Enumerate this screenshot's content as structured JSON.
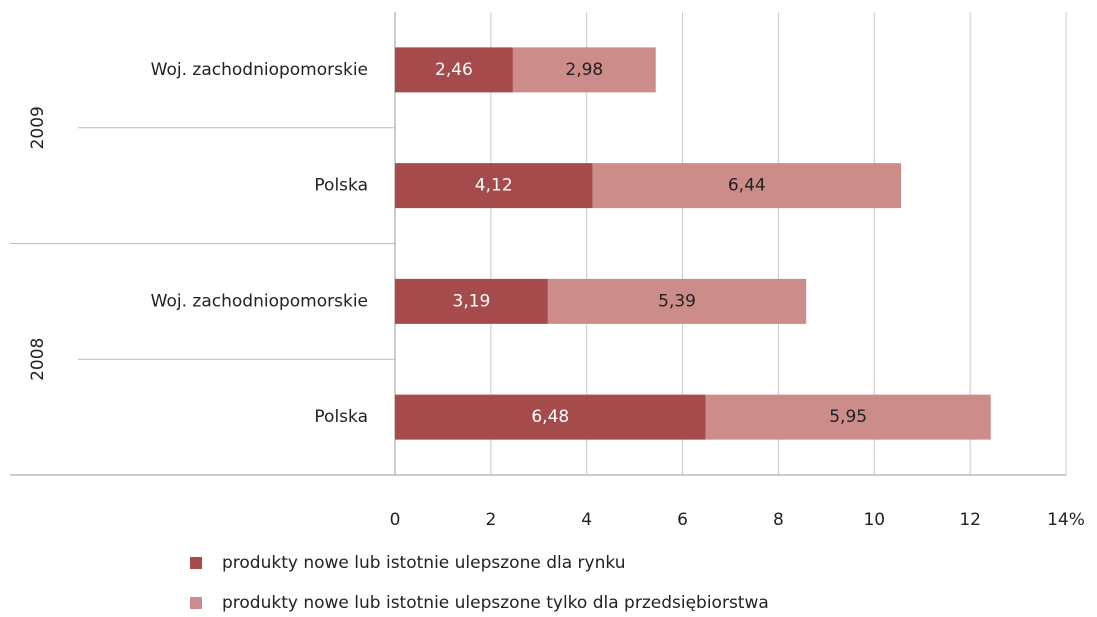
{
  "chart_data": {
    "type": "stacked-barh",
    "categories": [
      "Woj. zachodniopomorskie",
      "Polska",
      "Woj. zachodniopomorskie",
      "Polska"
    ],
    "groups": [
      "2009",
      "2008"
    ],
    "series": [
      {
        "name": "produkty nowe lub istotnie ulepszone dla rynku",
        "color": "#a64b4b",
        "values": [
          2.46,
          4.12,
          3.19,
          6.48
        ],
        "value_labels": [
          "2,46",
          "4,12",
          "3,19",
          "6,48"
        ]
      },
      {
        "name": "produkty nowe lub istotnie ulepszone tylko dla przedsiębiorstwa",
        "color": "#cc8c8a",
        "values": [
          2.98,
          6.44,
          5.39,
          5.95
        ],
        "value_labels": [
          "2,98",
          "6,44",
          "5,39",
          "5,95"
        ]
      }
    ],
    "xlim": [
      0,
      14
    ],
    "xticks": [
      0,
      2,
      4,
      6,
      8,
      10,
      12,
      {
        "value": 14,
        "label": "14%"
      }
    ],
    "grid": true
  }
}
